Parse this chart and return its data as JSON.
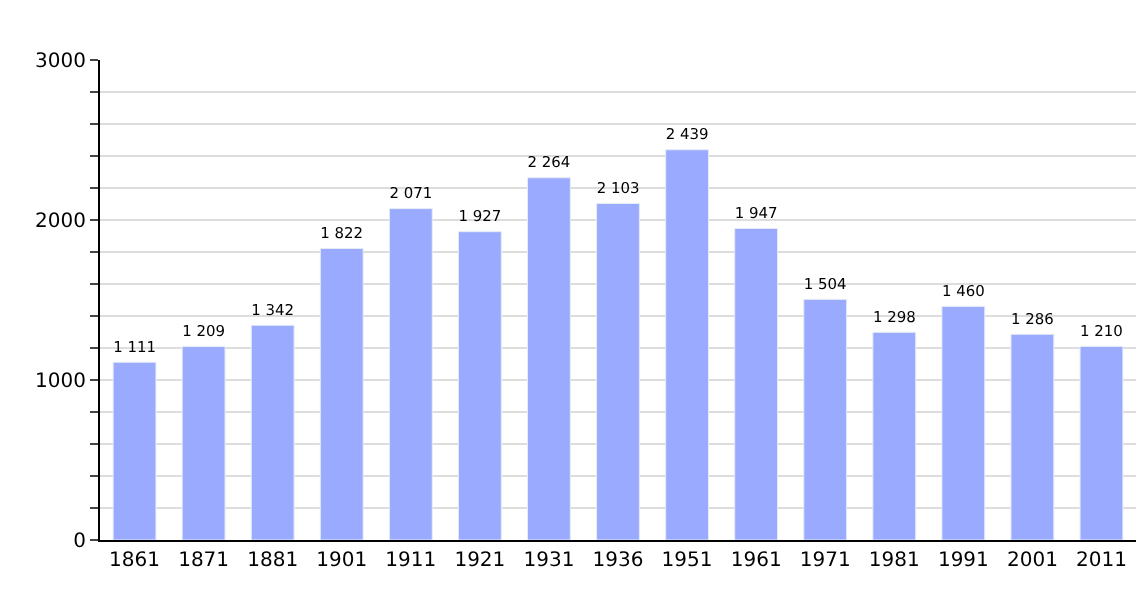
{
  "chart_data": {
    "type": "bar",
    "categories": [
      "1861",
      "1871",
      "1881",
      "1901",
      "1911",
      "1921",
      "1931",
      "1936",
      "1951",
      "1961",
      "1971",
      "1981",
      "1991",
      "2001",
      "2011"
    ],
    "values": [
      1111,
      1209,
      1342,
      1822,
      2071,
      1927,
      2264,
      2103,
      2439,
      1947,
      1504,
      1298,
      1460,
      1286,
      1210
    ],
    "value_labels": [
      "1 111",
      "1 209",
      "1 342",
      "1 822",
      "2 071",
      "1 927",
      "2 264",
      "2 103",
      "2 439",
      "1 947",
      "1 504",
      "1 298",
      "1 460",
      "1 286",
      "1 210"
    ],
    "color": "#99aaff",
    "ylim": [
      0,
      3000
    ],
    "yticks": [
      0,
      {
        "value": 200,
        "label": null
      },
      {
        "value": 400,
        "label": null
      },
      {
        "value": 600,
        "label": null
      },
      {
        "value": 800,
        "label": null
      },
      1000,
      {
        "value": 1200,
        "label": null
      },
      {
        "value": 1400,
        "label": null
      },
      {
        "value": 1600,
        "label": null
      },
      {
        "value": 1800,
        "label": null
      },
      2000,
      {
        "value": 2200,
        "label": null
      },
      {
        "value": 2400,
        "label": null
      },
      {
        "value": 2600,
        "label": null
      },
      {
        "value": 2800,
        "label": null
      },
      3000
    ],
    "grid": "y"
  }
}
